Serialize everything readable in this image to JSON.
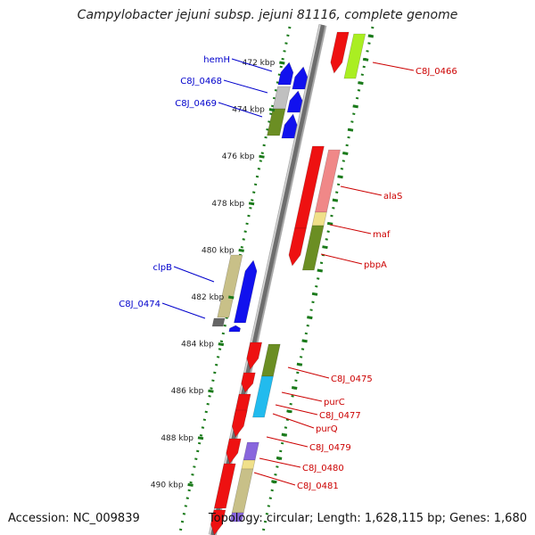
{
  "title": "Campylobacter jejuni subsp. jejuni 81116, complete genome",
  "accession": "Accession: NC_009839",
  "summary": "Topology: circular; Length: 1,628,115 bp; Genes: 1,680",
  "colors": {
    "backbone": "#888888",
    "forward_label": "#cc0000",
    "reverse_label": "#0000cc",
    "tick": "#1a7a1a",
    "red": "#ee1111",
    "blue": "#1111ee",
    "olive": "#6b8e23",
    "khaki": "#c8c088",
    "pink": "#f08888",
    "lime": "#aaee22",
    "cyan": "#22bbee",
    "lightyellow": "#f0e08a",
    "lavender": "#8866dd",
    "gray": "#666666",
    "silver": "#c0c0c0"
  },
  "scale": {
    "ticks": [
      {
        "label": "472 kbp",
        "kbp": 472
      },
      {
        "label": "474 kbp",
        "kbp": 474
      },
      {
        "label": "476 kbp",
        "kbp": 476
      },
      {
        "label": "478 kbp",
        "kbp": 478
      },
      {
        "label": "480 kbp",
        "kbp": 480
      },
      {
        "label": "482 kbp",
        "kbp": 482
      },
      {
        "label": "484 kbp",
        "kbp": 484
      },
      {
        "label": "486 kbp",
        "kbp": 486
      },
      {
        "label": "488 kbp",
        "kbp": 488
      },
      {
        "label": "490 kbp",
        "kbp": 490
      }
    ]
  },
  "gene_labels": {
    "reverse": [
      "hemH",
      "C8J_0468",
      "C8J_0469",
      "clpB",
      "C8J_0474"
    ],
    "forward": [
      "C8J_0466",
      "alaS",
      "maf",
      "pbpA",
      "C8J_0475",
      "purC",
      "C8J_0477",
      "purQ",
      "C8J_0479",
      "C8J_0480",
      "C8J_0481"
    ]
  }
}
